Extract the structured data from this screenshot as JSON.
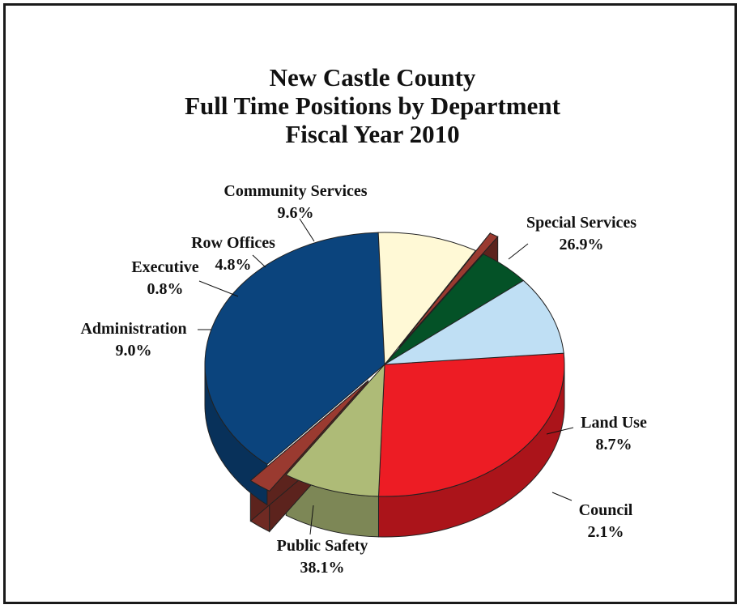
{
  "chart_data": {
    "type": "pie",
    "title": [
      "New Castle County",
      "Full Time Positions by Department",
      "Fiscal Year 2010"
    ],
    "three_d": true,
    "legend": "none",
    "slices": [
      {
        "label": "Special Services",
        "value": 26.9,
        "value_label": "26.9%",
        "color": "#ED1C24"
      },
      {
        "label": "Land Use",
        "value": 8.7,
        "value_label": "8.7%",
        "color": "#AEBB77"
      },
      {
        "label": "Council",
        "value": 2.1,
        "value_label": "2.1%",
        "color": "#9A3A30",
        "exploded": true
      },
      {
        "label": "Public Safety",
        "value": 38.1,
        "value_label": "38.1%",
        "color": "#0B447D"
      },
      {
        "label": "Administration",
        "value": 9.0,
        "value_label": "9.0%",
        "color": "#FFF9D6"
      },
      {
        "label": "Executive",
        "value": 0.8,
        "value_label": "0.8%",
        "color": "#9A3A30",
        "exploded": true
      },
      {
        "label": "Row Offices",
        "value": 4.8,
        "value_label": "4.8%",
        "color": "#045227"
      },
      {
        "label": "Community Services",
        "value": 9.6,
        "value_label": "9.6%",
        "color": "#BFDFF4"
      }
    ]
  }
}
